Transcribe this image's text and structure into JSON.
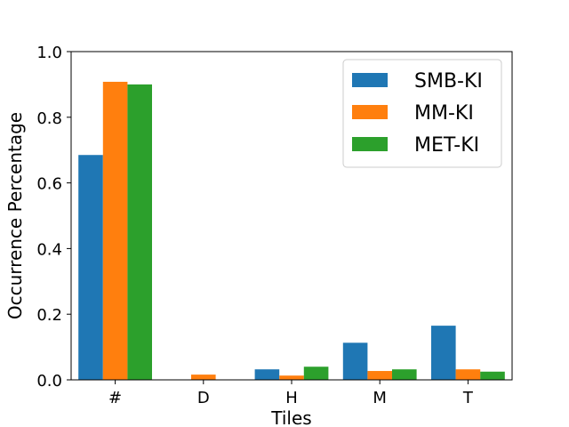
{
  "chart_data": {
    "type": "bar",
    "title": "",
    "xlabel": "Tiles",
    "ylabel": "Occurrence Percentage",
    "categories": [
      "#",
      "D",
      "H",
      "M",
      "T"
    ],
    "ylim": [
      0,
      1.0
    ],
    "yticks": [
      "0.0",
      "0.2",
      "0.4",
      "0.6",
      "0.8",
      "1.0"
    ],
    "grid": false,
    "legend_position": "top-right",
    "series": [
      {
        "name": "SMB-KI",
        "color": "#1f77b4",
        "values": [
          0.685,
          0.0,
          0.032,
          0.113,
          0.165
        ]
      },
      {
        "name": "MM-KI",
        "color": "#ff7f0e",
        "values": [
          0.908,
          0.016,
          0.013,
          0.027,
          0.032
        ]
      },
      {
        "name": "MET-KI",
        "color": "#2ca02c",
        "values": [
          0.9,
          0.0,
          0.04,
          0.032,
          0.025
        ]
      }
    ]
  }
}
